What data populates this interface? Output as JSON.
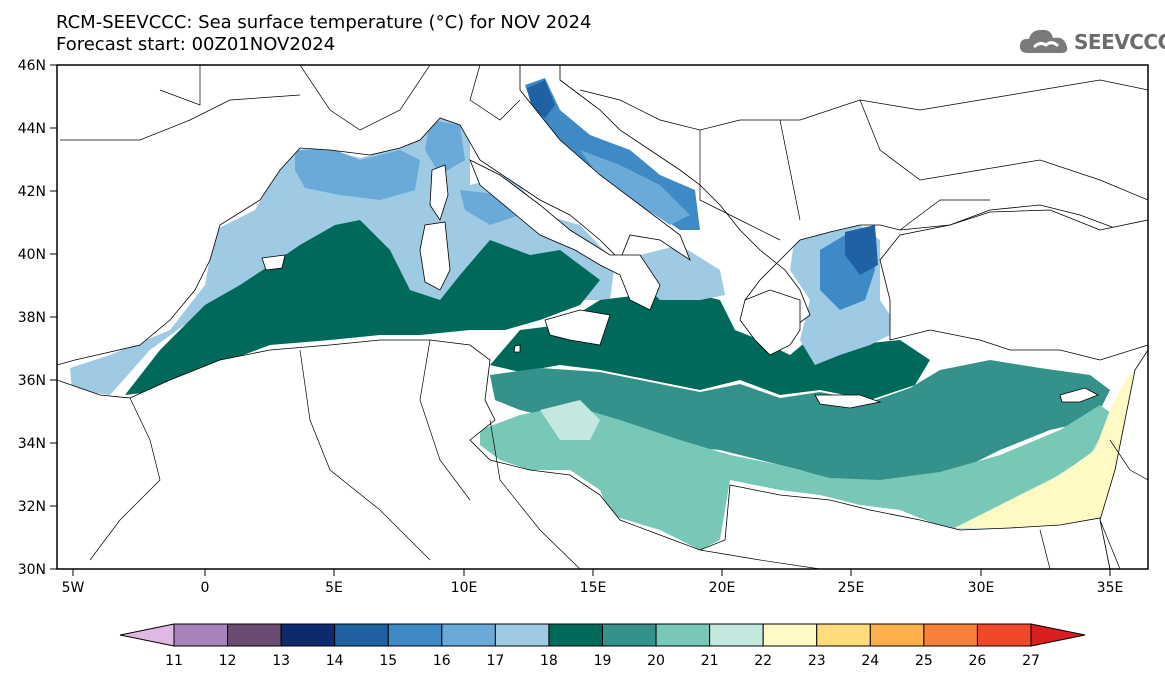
{
  "title_line1": "RCM-SEEVCCC: Sea surface temperature (°C) for NOV 2024",
  "title_line2": "Forecast start: 00Z01NOV2024",
  "logo_text": "SEEVCCC",
  "map": {
    "lon_range": [
      -6,
      36
    ],
    "lat_range": [
      30,
      46
    ],
    "lat_ticks": [
      "46N",
      "44N",
      "42N",
      "40N",
      "38N",
      "36N",
      "34N",
      "32N",
      "30N"
    ],
    "lon_ticks": [
      "5W",
      "0",
      "5E",
      "10E",
      "15E",
      "20E",
      "25E",
      "30E",
      "35E"
    ]
  },
  "colorbar": {
    "levels": [
      "11",
      "12",
      "13",
      "14",
      "15",
      "16",
      "17",
      "18",
      "19",
      "20",
      "21",
      "22",
      "23",
      "24",
      "25",
      "26",
      "27"
    ],
    "colors": [
      "#e0b8e4",
      "#a882ba",
      "#6a4c72",
      "#0d2a6c",
      "#1e62a4",
      "#3e8ac6",
      "#6aaad8",
      "#9ecae4",
      "#006a5a",
      "#34928a",
      "#78c8b8",
      "#c4e8e0",
      "#fffac4",
      "#fedc7a",
      "#fcb04c",
      "#f88038",
      "#f04828",
      "#d81e1e"
    ]
  }
}
